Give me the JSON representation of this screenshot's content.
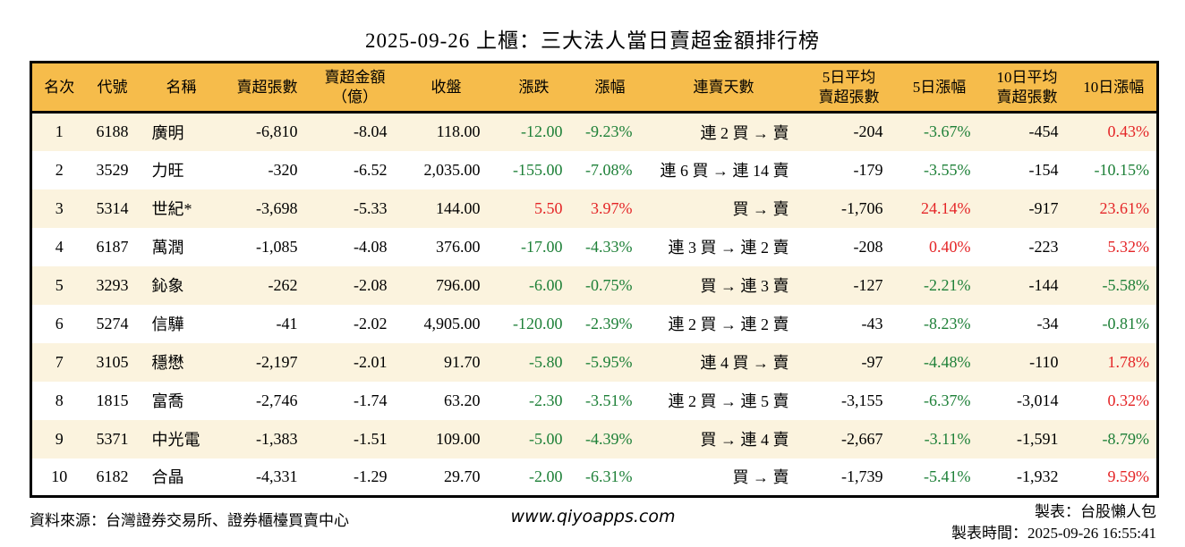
{
  "colors": {
    "up_red": "#e42527",
    "down_green": "#1e8038",
    "header_bg": "#F6BC4B",
    "stripe_bg": "#FBF3DE",
    "border": "#000000"
  },
  "chart_data": {
    "type": "table",
    "title": "2025-09-26 上櫃：三大法人當日賣超金額排行榜",
    "legend_note": "green = decline, red = rise (Taiwan convention)",
    "columns": [
      {
        "id": "rank",
        "label": "名次",
        "lines": [
          "名次"
        ],
        "align": "center"
      },
      {
        "id": "code",
        "label": "代號",
        "lines": [
          "代號"
        ],
        "align": "center"
      },
      {
        "id": "name",
        "label": "名稱",
        "lines": [
          "名稱"
        ],
        "align": "left"
      },
      {
        "id": "net_sell_volume",
        "label": "賣超張數",
        "lines": [
          "賣超張數"
        ],
        "align": "right"
      },
      {
        "id": "net_sell_amount",
        "label": "賣超金額（億）",
        "lines": [
          "賣超金額",
          "（億）"
        ],
        "align": "right"
      },
      {
        "id": "close",
        "label": "收盤",
        "lines": [
          "收盤"
        ],
        "align": "right"
      },
      {
        "id": "change",
        "label": "漲跌",
        "lines": [
          "漲跌"
        ],
        "align": "right",
        "color_key": "change_dir"
      },
      {
        "id": "change_pct",
        "label": "漲幅",
        "lines": [
          "漲幅"
        ],
        "align": "right",
        "color_key": "change_dir"
      },
      {
        "id": "sell_streak",
        "label": "連賣天數",
        "lines": [
          "連賣天數"
        ],
        "align": "right"
      },
      {
        "id": "avg5_volume",
        "label": "5日平均賣超張數",
        "lines": [
          "5日平均",
          "賣超張數"
        ],
        "align": "right"
      },
      {
        "id": "pct5",
        "label": "5日漲幅",
        "lines": [
          "5日漲幅"
        ],
        "align": "right",
        "color_key": "pct5_dir"
      },
      {
        "id": "avg10_volume",
        "label": "10日平均賣超張數",
        "lines": [
          "10日平均",
          "賣超張數"
        ],
        "align": "right"
      },
      {
        "id": "pct10",
        "label": "10日漲幅",
        "lines": [
          "10日漲幅"
        ],
        "align": "right",
        "color_key": "pct10_dir"
      }
    ],
    "rows": [
      {
        "rank": "1",
        "code": "6188",
        "name": "廣明",
        "net_sell_volume": "-6,810",
        "net_sell_amount": "-8.04",
        "close": "118.00",
        "change": "-12.00",
        "change_pct": "-9.23%",
        "change_dir": "down",
        "sell_streak": "連 2 買 → 賣",
        "avg5_volume": "-204",
        "pct5": "-3.67%",
        "pct5_dir": "down",
        "avg10_volume": "-454",
        "pct10": "0.43%",
        "pct10_dir": "up"
      },
      {
        "rank": "2",
        "code": "3529",
        "name": "力旺",
        "net_sell_volume": "-320",
        "net_sell_amount": "-6.52",
        "close": "2,035.00",
        "change": "-155.00",
        "change_pct": "-7.08%",
        "change_dir": "down",
        "sell_streak": "連 6 買 → 連 14 賣",
        "avg5_volume": "-179",
        "pct5": "-3.55%",
        "pct5_dir": "down",
        "avg10_volume": "-154",
        "pct10": "-10.15%",
        "pct10_dir": "down"
      },
      {
        "rank": "3",
        "code": "5314",
        "name": "世紀*",
        "net_sell_volume": "-3,698",
        "net_sell_amount": "-5.33",
        "close": "144.00",
        "change": "5.50",
        "change_pct": "3.97%",
        "change_dir": "up",
        "sell_streak": "買 → 賣",
        "avg5_volume": "-1,706",
        "pct5": "24.14%",
        "pct5_dir": "up",
        "avg10_volume": "-917",
        "pct10": "23.61%",
        "pct10_dir": "up"
      },
      {
        "rank": "4",
        "code": "6187",
        "name": "萬潤",
        "net_sell_volume": "-1,085",
        "net_sell_amount": "-4.08",
        "close": "376.00",
        "change": "-17.00",
        "change_pct": "-4.33%",
        "change_dir": "down",
        "sell_streak": "連 3 買 → 連 2 賣",
        "avg5_volume": "-208",
        "pct5": "0.40%",
        "pct5_dir": "up",
        "avg10_volume": "-223",
        "pct10": "5.32%",
        "pct10_dir": "up"
      },
      {
        "rank": "5",
        "code": "3293",
        "name": "鈊象",
        "net_sell_volume": "-262",
        "net_sell_amount": "-2.08",
        "close": "796.00",
        "change": "-6.00",
        "change_pct": "-0.75%",
        "change_dir": "down",
        "sell_streak": "買 → 連 3 賣",
        "avg5_volume": "-127",
        "pct5": "-2.21%",
        "pct5_dir": "down",
        "avg10_volume": "-144",
        "pct10": "-5.58%",
        "pct10_dir": "down"
      },
      {
        "rank": "6",
        "code": "5274",
        "name": "信驊",
        "net_sell_volume": "-41",
        "net_sell_amount": "-2.02",
        "close": "4,905.00",
        "change": "-120.00",
        "change_pct": "-2.39%",
        "change_dir": "down",
        "sell_streak": "連 2 買 → 連 2 賣",
        "avg5_volume": "-43",
        "pct5": "-8.23%",
        "pct5_dir": "down",
        "avg10_volume": "-34",
        "pct10": "-0.81%",
        "pct10_dir": "down"
      },
      {
        "rank": "7",
        "code": "3105",
        "name": "穩懋",
        "net_sell_volume": "-2,197",
        "net_sell_amount": "-2.01",
        "close": "91.70",
        "change": "-5.80",
        "change_pct": "-5.95%",
        "change_dir": "down",
        "sell_streak": "連 4 買 → 賣",
        "avg5_volume": "-97",
        "pct5": "-4.48%",
        "pct5_dir": "down",
        "avg10_volume": "-110",
        "pct10": "1.78%",
        "pct10_dir": "up"
      },
      {
        "rank": "8",
        "code": "1815",
        "name": "富喬",
        "net_sell_volume": "-2,746",
        "net_sell_amount": "-1.74",
        "close": "63.20",
        "change": "-2.30",
        "change_pct": "-3.51%",
        "change_dir": "down",
        "sell_streak": "連 2 買 → 連 5 賣",
        "avg5_volume": "-3,155",
        "pct5": "-6.37%",
        "pct5_dir": "down",
        "avg10_volume": "-3,014",
        "pct10": "0.32%",
        "pct10_dir": "up"
      },
      {
        "rank": "9",
        "code": "5371",
        "name": "中光電",
        "net_sell_volume": "-1,383",
        "net_sell_amount": "-1.51",
        "close": "109.00",
        "change": "-5.00",
        "change_pct": "-4.39%",
        "change_dir": "down",
        "sell_streak": "買 → 連 4 賣",
        "avg5_volume": "-2,667",
        "pct5": "-3.11%",
        "pct5_dir": "down",
        "avg10_volume": "-1,591",
        "pct10": "-8.79%",
        "pct10_dir": "down"
      },
      {
        "rank": "10",
        "code": "6182",
        "name": "合晶",
        "net_sell_volume": "-4,331",
        "net_sell_amount": "-1.29",
        "close": "29.70",
        "change": "-2.00",
        "change_pct": "-6.31%",
        "change_dir": "down",
        "sell_streak": "買 → 賣",
        "avg5_volume": "-1,739",
        "pct5": "-5.41%",
        "pct5_dir": "down",
        "avg10_volume": "-1,932",
        "pct10": "9.59%",
        "pct10_dir": "up"
      }
    ]
  },
  "footer": {
    "source": "資料來源：台灣證券交易所、證券櫃檯買賣中心",
    "website": "www.qiyoapps.com",
    "made_by": "製表：台股懶人包",
    "made_time": "製表時間：2025-09-26 16:55:41"
  }
}
